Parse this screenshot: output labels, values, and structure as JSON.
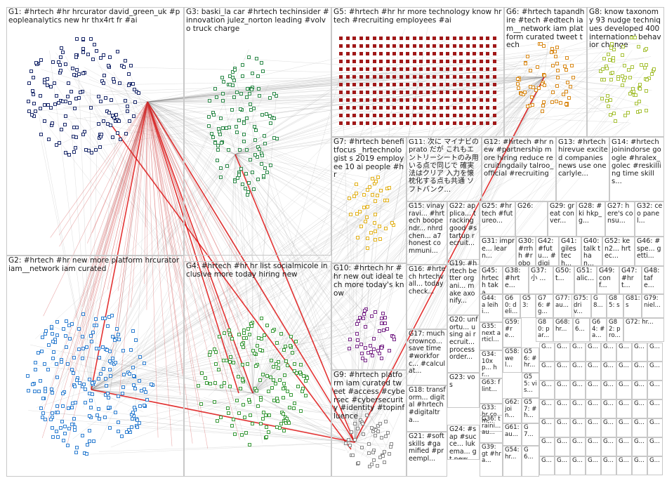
{
  "groups": {
    "G1": {
      "label": "G1: #hrtech #hr hrcurator david_green_uk #peopleanalytics new hr thx4rt fr #ai",
      "color": "#1b2a6b"
    },
    "G2": {
      "label": "G2: #hrtech #hr new more platform hrcurator iam__network iam curated",
      "color": "#2f7fd1"
    },
    "G3": {
      "label": "G3: baski_la car #hrtech techinsider #innovation julez_norton leading #volvo truck charge",
      "color": "#2e8a4a"
    },
    "G4": {
      "label": "G4: #hrtech #hr hr list socialmicole inclusive more today hiring new",
      "color": "#3a9a3a"
    },
    "G5": {
      "label": "G5: #hrtech #hr hr more technology know hrtech #recruiting employees #ai",
      "color": "#a01818"
    },
    "G6": {
      "label": "G6: #hrtech tapandhire #tech #edtech iam__network iam platform curated tweet tech",
      "color": "#d98a1a"
    },
    "G7": {
      "label": "G7: #hrtech benefitfocus _hrtechnologist s 2019 employee 10 ai people #hr",
      "color": "#e3b21c"
    },
    "G8": {
      "label": "G8: know taxonomy 93 nudge techniques developed 400 international behavior change",
      "color": "#a8c23a"
    },
    "G9": {
      "label": "G9: #hrtech platform iam curated tweet #access #cybersec #cybersecurity #identity #topinfluence",
      "color": "#8a8a8a"
    },
    "G10": {
      "label": "G10: #hrtech hr #hr new out ideal tech more today's know",
      "color": "#7a2a8a"
    },
    "G11": {
      "label": "G11: 次に マイナビの prato だが これもエントリーシートのみ用いる点で同じで 確実法はクリア 入力を懐枕化する点も共通 ソフトバンク...",
      "color": "#555555"
    },
    "G12": {
      "label": "G12: #hrtech #hr new #partnership more hiring reduce recruitingdaily talroo_official #recruiting",
      "color": "#555555"
    },
    "G13": {
      "label": "G13: #hrtech hirevue excited companies news use onecarlyle...",
      "color": "#555555"
    },
    "G14": {
      "label": "G14: #hrtech joinindorse google #hralex_golec #reskilling time skills...",
      "color": "#555555"
    },
    "G15": {
      "label": "G15: vinayravi... #hrtech boopendr... nhrdchen... a7 honest communi...",
      "color": "#555555"
    },
    "G16": {
      "label": "G16: #hrtech hrtechvall... today check...",
      "color": "#555555"
    },
    "G17": {
      "label": "G17: much crownco... save time #workforc... #calculat...",
      "color": "#555555"
    },
    "G18": {
      "label": "G18: transform... digital #hrtech #digitaltra...",
      "color": "#555555"
    },
    "G19": {
      "label": "G19: #hrtech better organi... make axonify...",
      "color": "#555555"
    },
    "G20": {
      "label": "G20: unfortu... using ai recruit... process order...",
      "color": "#555555"
    },
    "G21": {
      "label": "G21: #softskills #gamified #preempl...",
      "color": "#555555"
    },
    "G22": {
      "label": "G22: applica... tracking good #startup recruit...",
      "color": "#555555"
    },
    "G23": {
      "label": "G23: vos",
      "color": "#555555"
    },
    "G24": {
      "label": "G24: #sap #succe... lukema... gt new...",
      "color": "#555555"
    },
    "G25": {
      "label": "G25: #hrtech #futureo...",
      "color": "#555555"
    },
    "G26": {
      "label": "G26:",
      "color": "#555555"
    },
    "G27": {
      "label": "G27: here's consu...",
      "color": "#555555"
    },
    "G28": {
      "label": "G28: #ki hkp_g...",
      "color": "#555555"
    },
    "G29": {
      "label": "G29: great conver...",
      "color": "#555555"
    },
    "G30": {
      "label": "G30: #rrhh #robot...",
      "color": "#555555"
    },
    "G31": {
      "label": "G31: impre... learn...",
      "color": "#555555"
    },
    "G32": {
      "label": "G32: ceo panel...",
      "color": "#555555"
    },
    "G33": {
      "label": "G33: hr com...",
      "color": "#555555"
    },
    "G34": {
      "label": "G34: 10xp... hr...",
      "color": "#555555"
    },
    "G35": {
      "label": "G35: next articl...",
      "color": "#555555"
    },
    "G36": {
      "label": "G36: traini... au...",
      "color": "#555555"
    },
    "G37": {
      "label": "G37: 小 ...",
      "color": "#555555"
    },
    "G38": {
      "label": "G38: #hrte...",
      "color": "#555555"
    },
    "G39": {
      "label": "G39: gt #hra...",
      "color": "#555555"
    },
    "G40": {
      "label": "G40: talk than...",
      "color": "#555555"
    },
    "G41": {
      "label": "G41: giles tech...",
      "color": "#555555"
    },
    "G42": {
      "label": "G42: #futu... #digit...",
      "color": "#555555"
    },
    "G43": {
      "label": "G43: #hrt...",
      "color": "#555555"
    },
    "G44": {
      "label": "G44: a leihi...",
      "color": "#555555"
    },
    "G45": {
      "label": "G45: hrtech taka...",
      "color": "#555555"
    },
    "G46": {
      "label": "G46: #spe... getti...",
      "color": "#555555"
    },
    "G47": {
      "label": "G47: #hrt...",
      "color": "#555555"
    },
    "G48": {
      "label": "G48: tafe...",
      "color": "#555555"
    },
    "G49": {
      "label": "G49: conf...",
      "color": "#555555"
    },
    "G50": {
      "label": "G50: t...",
      "color": "#555555"
    },
    "G51": {
      "label": "G51: alic...",
      "color": "#555555"
    },
    "G52": {
      "label": "G52: ken2... hrtec...",
      "color": "#555555"
    },
    "G53": {
      "label": "G53:",
      "color": "#555555"
    },
    "G54": {
      "label": "G54: hr...",
      "color": "#555555"
    },
    "G55": {
      "label": "G55: vis...",
      "color": "#555555"
    },
    "G56": {
      "label": "G56: #hr...",
      "color": "#555555"
    },
    "G57": {
      "label": "G57: #h...",
      "color": "#555555"
    },
    "G58": {
      "label": "G58: wel...",
      "color": "#555555"
    },
    "G59": {
      "label": "G59: #re...",
      "color": "#555555"
    },
    "G60": {
      "label": "G60: deli...",
      "color": "#555555"
    },
    "G61": {
      "label": "G61: au...",
      "color": "#555555"
    },
    "G62": {
      "label": "G62: join...",
      "color": "#555555"
    },
    "G63": {
      "label": "G63: flint...",
      "color": "#555555"
    },
    "G64": {
      "label": "G64: #a...",
      "color": "#555555"
    },
    "G65": {
      "label": "G65: op... #p...",
      "color": "#555555"
    },
    "G66": {
      "label": "G6...",
      "color": "#555555"
    },
    "G67": {
      "label": "G7...",
      "color": "#555555"
    },
    "G68": {
      "label": "G68: hr...",
      "color": "#555555"
    },
    "G69": {
      "label": "G6...",
      "color": "#555555"
    },
    "G70": {
      "label": "G7...",
      "color": "#555555"
    },
    "G71": {
      "label": "G7...",
      "color": "#555555"
    },
    "G72": {
      "label": "G72: hr...",
      "color": "#555555"
    },
    "G73": {
      "label": "G7...",
      "color": "#555555"
    },
    "G74": {
      "label": "G7...",
      "color": "#555555"
    },
    "G75": {
      "label": "G75: driv...",
      "color": "#555555"
    },
    "G76": {
      "label": "G76: #g...",
      "color": "#555555"
    },
    "G77": {
      "label": "G77: au...",
      "color": "#555555"
    },
    "G78": {
      "label": "G7...",
      "color": "#555555"
    },
    "G79": {
      "label": "G79: niel...",
      "color": "#555555"
    },
    "G80": {
      "label": "G80: par...",
      "color": "#555555"
    },
    "G81": {
      "label": "G81: s",
      "color": "#555555"
    },
    "G82": {
      "label": "G82: pro...",
      "color": "#555555"
    },
    "G83": {
      "label": "G83: ...",
      "color": "#555555"
    },
    "G84": {
      "label": "G8...",
      "color": "#555555"
    },
    "G85": {
      "label": "G85: s",
      "color": "#555555"
    },
    "G86": {
      "label": "G86: ...",
      "color": "#555555"
    }
  },
  "tiny_group_label": "G..."
}
